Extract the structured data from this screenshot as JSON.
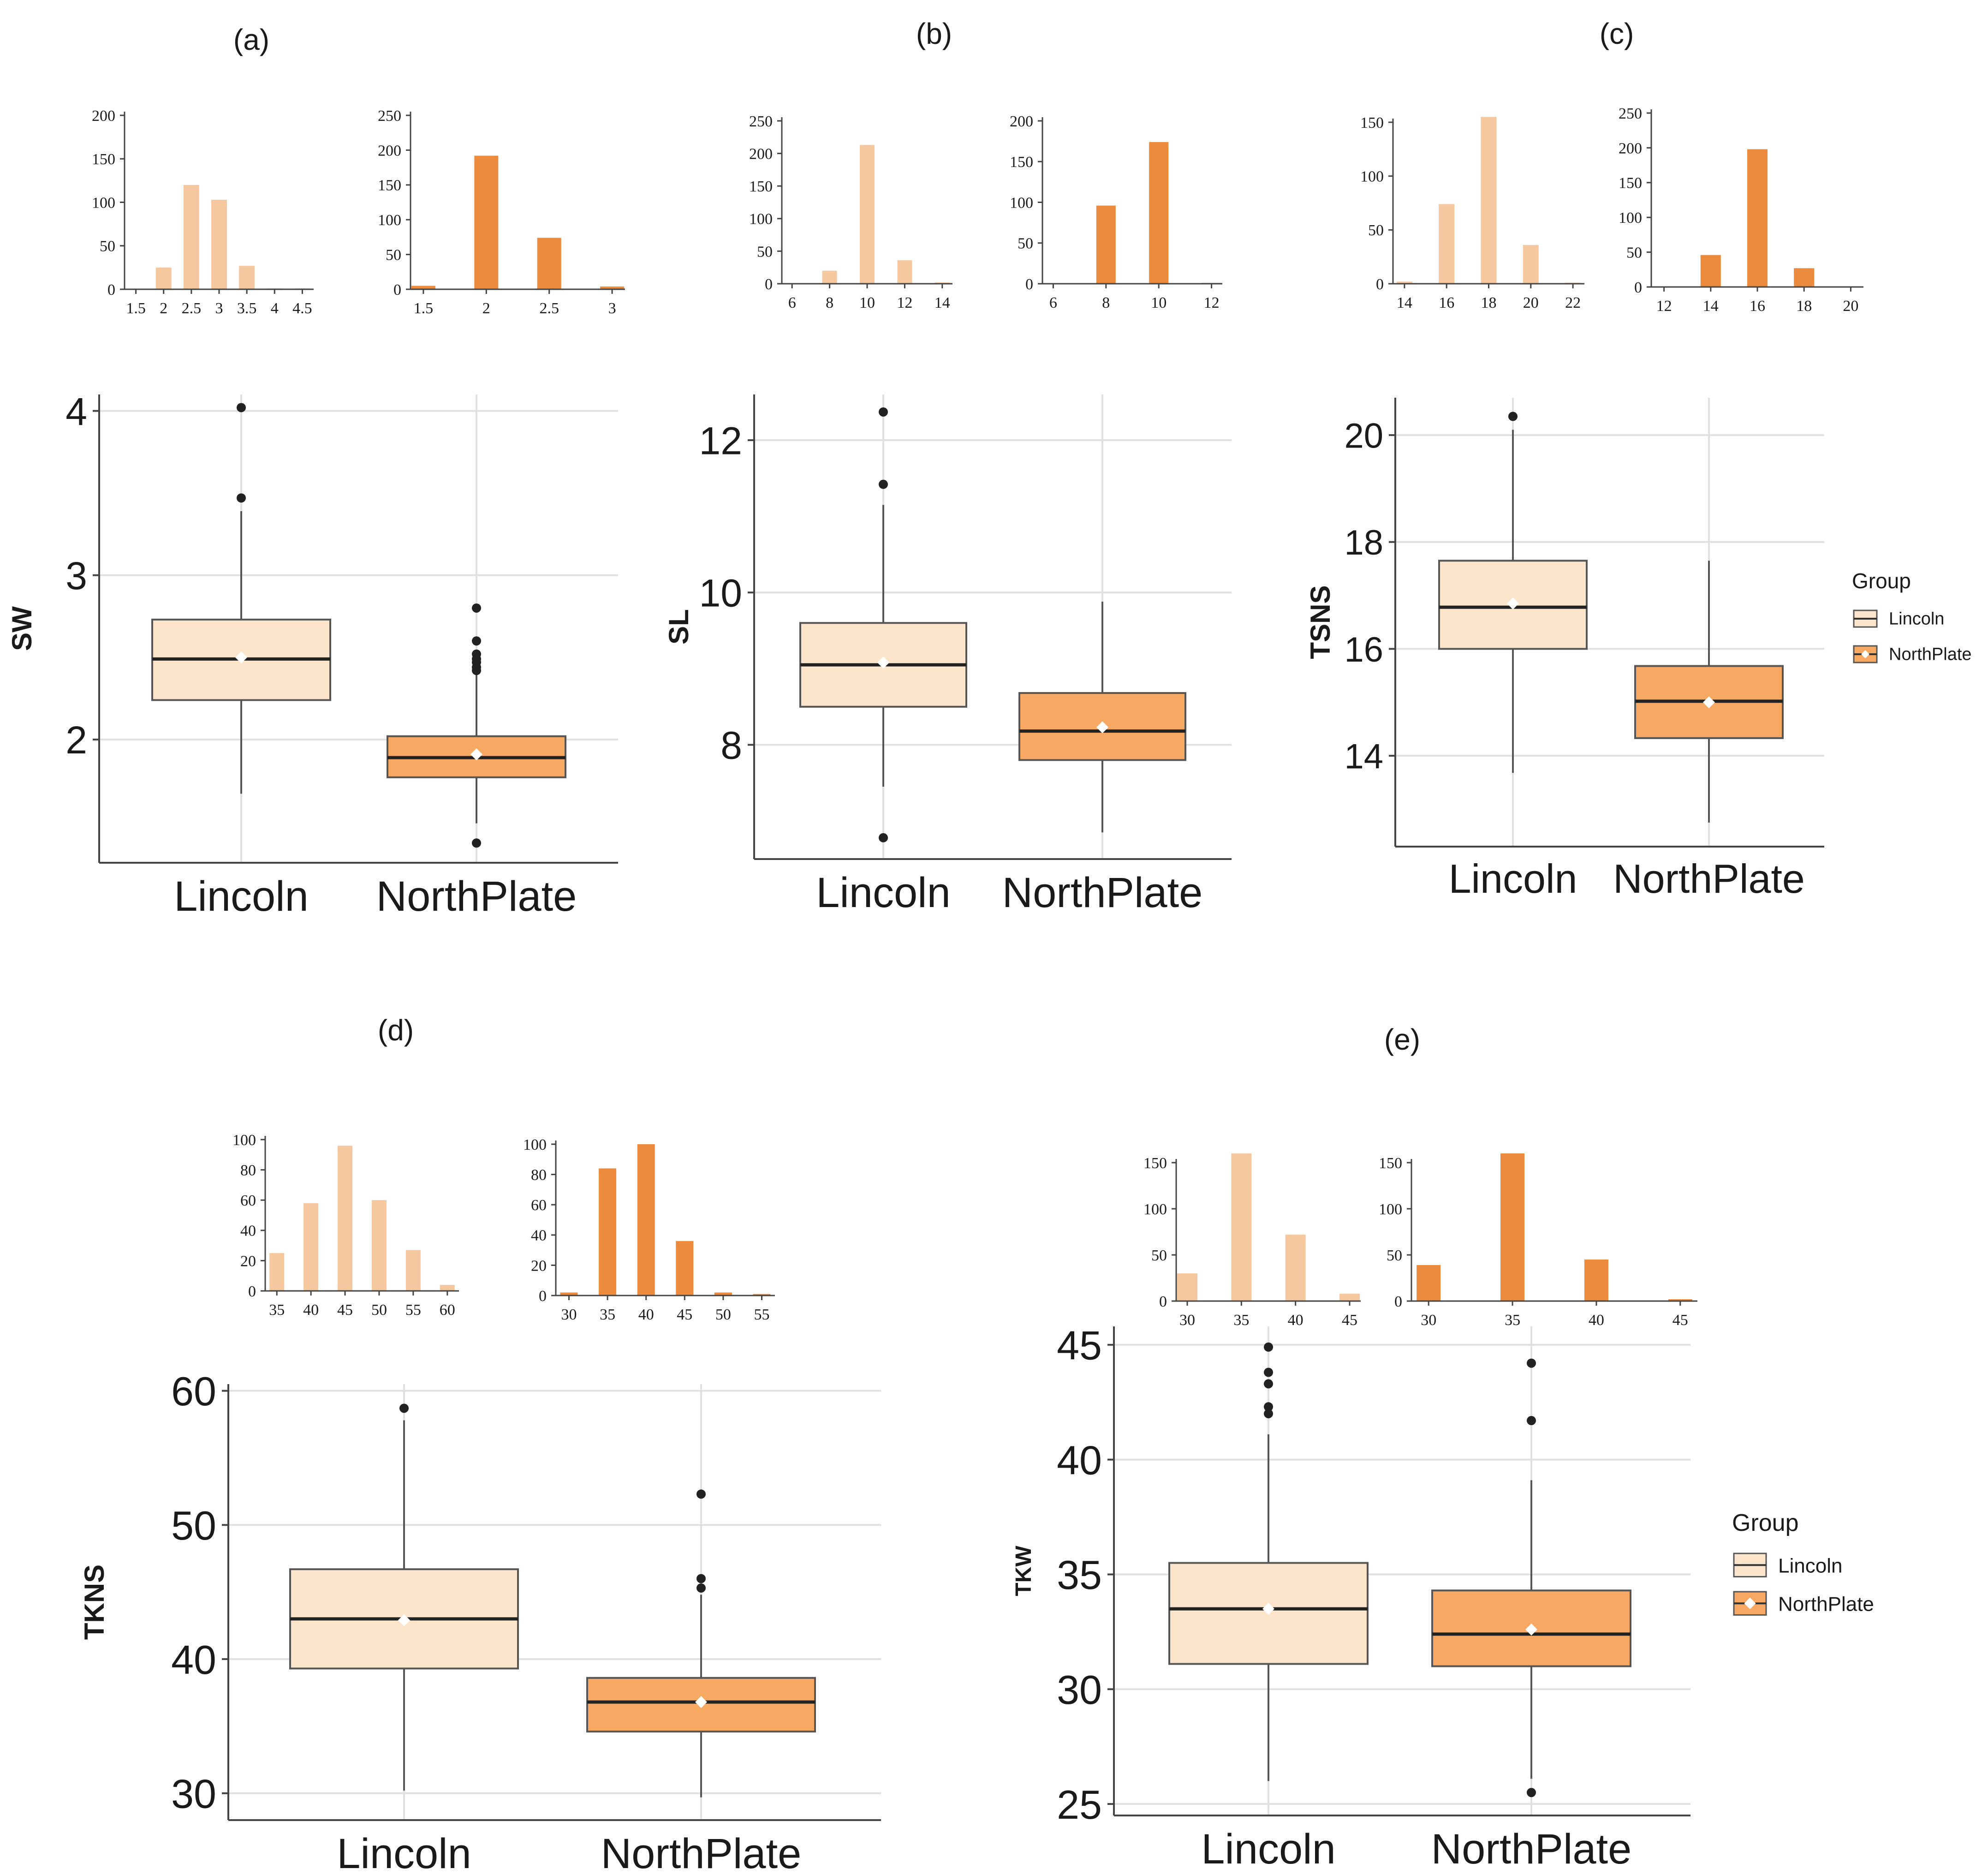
{
  "chart_data": [
    {
      "panel": "(a)",
      "type": "box",
      "ylabel": "SW",
      "yticks": [
        2,
        3,
        4
      ],
      "ylim": [
        1.25,
        4.1
      ],
      "categories": [
        "Lincoln",
        "NorthPlate"
      ],
      "boxes": [
        {
          "group": "Lincoln",
          "q1": 2.24,
          "median": 2.49,
          "q3": 2.73,
          "mean": 2.5,
          "whisker_low": 1.67,
          "whisker_high": 3.39,
          "outliers": [
            3.47,
            4.02
          ]
        },
        {
          "group": "NorthPlate",
          "q1": 1.77,
          "median": 1.89,
          "q3": 2.02,
          "mean": 1.91,
          "whisker_low": 1.49,
          "whisker_high": 2.4,
          "outliers": [
            1.37,
            2.42,
            2.44,
            2.47,
            2.49,
            2.52,
            2.6,
            2.8
          ]
        }
      ],
      "histograms": [
        {
          "group": "Lincoln",
          "ymax": 200,
          "yticks": [
            0,
            50,
            100,
            150,
            200
          ],
          "xticks": [
            "1.5",
            "2",
            "2.5",
            "3",
            "3.5",
            "4",
            "4.5"
          ],
          "bins": [
            {
              "x": 2.0,
              "count": 25
            },
            {
              "x": 2.5,
              "count": 120
            },
            {
              "x": 3.0,
              "count": 103
            },
            {
              "x": 3.5,
              "count": 27
            },
            {
              "x": 4.0,
              "count": 1
            },
            {
              "x": 4.5,
              "count": 1
            }
          ]
        },
        {
          "group": "NorthPlate",
          "ymax": 250,
          "yticks": [
            0,
            50,
            100,
            150,
            200,
            250
          ],
          "xticks": [
            "1.5",
            "2",
            "2.5",
            "3"
          ],
          "bins": [
            {
              "x": 1.5,
              "count": 5
            },
            {
              "x": 2.0,
              "count": 192
            },
            {
              "x": 2.5,
              "count": 74
            },
            {
              "x": 3.0,
              "count": 4
            }
          ]
        }
      ]
    },
    {
      "panel": "(b)",
      "type": "box",
      "ylabel": "SL",
      "yticks": [
        8,
        10,
        12
      ],
      "ylim": [
        6.5,
        12.6
      ],
      "categories": [
        "Lincoln",
        "NorthPlate"
      ],
      "boxes": [
        {
          "group": "Lincoln",
          "q1": 8.5,
          "median": 9.05,
          "q3": 9.6,
          "mean": 9.08,
          "whisker_low": 7.45,
          "whisker_high": 11.15,
          "outliers": [
            6.78,
            11.42,
            12.37
          ]
        },
        {
          "group": "NorthPlate",
          "q1": 7.8,
          "median": 8.18,
          "q3": 8.68,
          "mean": 8.23,
          "whisker_low": 6.85,
          "whisker_high": 9.88,
          "outliers": []
        }
      ],
      "histograms": [
        {
          "group": "Lincoln",
          "ymax": 250,
          "yticks": [
            0,
            50,
            100,
            150,
            200,
            250
          ],
          "xticks": [
            "6",
            "8",
            "10",
            "12",
            "14"
          ],
          "bins": [
            {
              "x": 6,
              "count": 1
            },
            {
              "x": 8,
              "count": 20
            },
            {
              "x": 10,
              "count": 213
            },
            {
              "x": 12,
              "count": 36
            },
            {
              "x": 14,
              "count": 2
            }
          ]
        },
        {
          "group": "NorthPlate",
          "ymax": 200,
          "yticks": [
            0,
            50,
            100,
            150,
            200
          ],
          "xticks": [
            "6",
            "8",
            "10",
            "12"
          ],
          "bins": [
            {
              "x": 8,
              "count": 96
            },
            {
              "x": 10,
              "count": 174
            },
            {
              "x": 12,
              "count": 1
            }
          ]
        }
      ]
    },
    {
      "panel": "(c)",
      "type": "box",
      "ylabel": "TSNS",
      "yticks": [
        14,
        16,
        18,
        20
      ],
      "ylim": [
        12.3,
        20.7
      ],
      "categories": [
        "Lincoln",
        "NorthPlate"
      ],
      "legend": {
        "title": "Group",
        "entries": [
          "Lincoln",
          "NorthPlate"
        ]
      },
      "boxes": [
        {
          "group": "Lincoln",
          "q1": 16.0,
          "median": 16.78,
          "q3": 17.65,
          "mean": 16.85,
          "whisker_low": 13.68,
          "whisker_high": 20.1,
          "outliers": [
            20.35
          ]
        },
        {
          "group": "NorthPlate",
          "q1": 14.33,
          "median": 15.02,
          "q3": 15.68,
          "mean": 15.0,
          "whisker_low": 12.75,
          "whisker_high": 17.65,
          "outliers": []
        }
      ],
      "histograms": [
        {
          "group": "Lincoln",
          "ymax": 150,
          "yticks": [
            0,
            50,
            100,
            150
          ],
          "xticks": [
            "14",
            "16",
            "18",
            "20",
            "22"
          ],
          "bins": [
            {
              "x": 14,
              "count": 2
            },
            {
              "x": 16,
              "count": 74
            },
            {
              "x": 18,
              "count": 155
            },
            {
              "x": 20,
              "count": 36
            },
            {
              "x": 22,
              "count": 1
            }
          ]
        },
        {
          "group": "NorthPlate",
          "ymax": 250,
          "yticks": [
            0,
            50,
            100,
            150,
            200,
            250
          ],
          "xticks": [
            "12",
            "14",
            "16",
            "18",
            "20"
          ],
          "bins": [
            {
              "x": 14,
              "count": 46
            },
            {
              "x": 16,
              "count": 198
            },
            {
              "x": 18,
              "count": 27
            },
            {
              "x": 20,
              "count": 1
            }
          ]
        }
      ]
    },
    {
      "panel": "(d)",
      "type": "box",
      "ylabel": "TKNS",
      "yticks": [
        30,
        40,
        50,
        60
      ],
      "ylim": [
        28,
        60.5
      ],
      "categories": [
        "Lincoln",
        "NorthPlate"
      ],
      "boxes": [
        {
          "group": "Lincoln",
          "q1": 39.3,
          "median": 43.0,
          "q3": 46.7,
          "mean": 42.9,
          "whisker_low": 30.2,
          "whisker_high": 57.8,
          "outliers": [
            58.7
          ]
        },
        {
          "group": "NorthPlate",
          "q1": 34.6,
          "median": 36.8,
          "q3": 38.6,
          "mean": 36.8,
          "whisker_low": 29.7,
          "whisker_high": 44.8,
          "outliers": [
            45.3,
            46.0,
            52.3
          ]
        }
      ],
      "histograms": [
        {
          "group": "Lincoln",
          "ymax": 100,
          "yticks": [
            0,
            20,
            40,
            60,
            80,
            100
          ],
          "xticks": [
            "35",
            "40",
            "45",
            "50",
            "55",
            "60"
          ],
          "bins": [
            {
              "x": 35,
              "count": 25
            },
            {
              "x": 40,
              "count": 58
            },
            {
              "x": 45,
              "count": 96
            },
            {
              "x": 50,
              "count": 60
            },
            {
              "x": 55,
              "count": 27
            },
            {
              "x": 60,
              "count": 4
            }
          ]
        },
        {
          "group": "NorthPlate",
          "ymax": 100,
          "yticks": [
            0,
            20,
            40,
            60,
            80,
            100
          ],
          "xticks": [
            "30",
            "35",
            "40",
            "45",
            "50",
            "55"
          ],
          "bins": [
            {
              "x": 30,
              "count": 2
            },
            {
              "x": 35,
              "count": 84
            },
            {
              "x": 40,
              "count": 100
            },
            {
              "x": 45,
              "count": 36
            },
            {
              "x": 50,
              "count": 2
            },
            {
              "x": 55,
              "count": 1
            }
          ]
        }
      ]
    },
    {
      "panel": "(e)",
      "type": "box",
      "ylabel": "TKW",
      "yticks": [
        25,
        30,
        35,
        40,
        45
      ],
      "ylim": [
        24.5,
        45.8
      ],
      "categories": [
        "Lincoln",
        "NorthPlate"
      ],
      "legend": {
        "title": "Group",
        "entries": [
          "Lincoln",
          "NorthPlate"
        ]
      },
      "boxes": [
        {
          "group": "Lincoln",
          "q1": 31.1,
          "median": 33.5,
          "q3": 35.5,
          "mean": 33.5,
          "whisker_low": 26.0,
          "whisker_high": 41.1,
          "outliers": [
            42.0,
            42.3,
            43.3,
            43.8,
            44.9
          ]
        },
        {
          "group": "NorthPlate",
          "q1": 31.0,
          "median": 32.4,
          "q3": 34.3,
          "mean": 32.6,
          "whisker_low": 26.1,
          "whisker_high": 39.1,
          "outliers": [
            25.5,
            41.7,
            44.2
          ]
        }
      ],
      "histograms": [
        {
          "group": "Lincoln",
          "ymax": 150,
          "yticks": [
            0,
            50,
            100,
            150
          ],
          "xticks": [
            "30",
            "35",
            "40",
            "45"
          ],
          "bins": [
            {
              "x": 30,
              "count": 30
            },
            {
              "x": 35,
              "count": 160
            },
            {
              "x": 40,
              "count": 72
            },
            {
              "x": 45,
              "count": 8
            }
          ]
        },
        {
          "group": "NorthPlate",
          "ymax": 150,
          "yticks": [
            0,
            50,
            100,
            150
          ],
          "xticks": [
            "30",
            "35",
            "40",
            "45"
          ],
          "bins": [
            {
              "x": 30,
              "count": 39
            },
            {
              "x": 35,
              "count": 160
            },
            {
              "x": 40,
              "count": 45
            },
            {
              "x": 45,
              "count": 2
            }
          ]
        }
      ]
    }
  ],
  "colors": {
    "lincoln_hist": "#f6c8a0",
    "northplate_hist": "#ec8a3e",
    "lincoln_box": "#fde5cc",
    "northplate_box": "#f7a863",
    "grid": "#e0e0e0",
    "axis": "#444444",
    "text": "#1a1a1a"
  }
}
